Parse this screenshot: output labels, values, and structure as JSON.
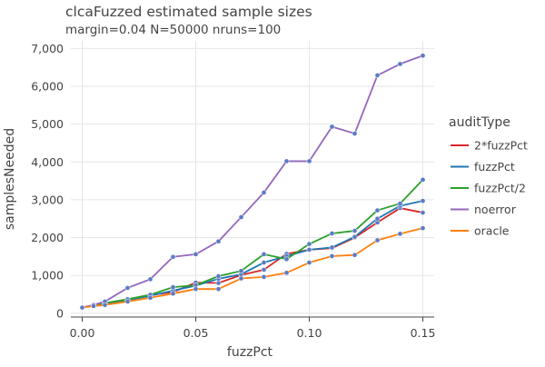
{
  "colors": {
    "2*fuzzPct": "#d62728",
    "fuzzPct": "#1f77b4",
    "fuzzPct/2": "#2ca02c",
    "noerror": "#9467bd",
    "oracle": "#ff7f0e",
    "grid": "#e6e6e6",
    "text": "#444444",
    "marker": "#5b7bc4"
  },
  "chart_data": {
    "type": "line",
    "title": "clcaFuzzed estimated sample sizes",
    "subtitle": "margin=0.04 N=50000 nruns=100",
    "xlabel": "fuzzPct",
    "ylabel": "samplesNeeded",
    "xlim": [
      -0.005,
      0.155
    ],
    "ylim": [
      -100,
      7200
    ],
    "x_ticks": [
      0,
      0.05,
      0.1,
      0.15
    ],
    "x_tick_labels": [
      "0.00",
      "0.05",
      "0.10",
      "0.15"
    ],
    "y_ticks": [
      0,
      1000,
      2000,
      3000,
      4000,
      5000,
      6000,
      7000
    ],
    "y_tick_labels": [
      "0",
      "1,000",
      "2,000",
      "3,000",
      "4,000",
      "5,000",
      "6,000",
      "7,000"
    ],
    "grid": true,
    "legend_title": "auditType",
    "legend_position": "right",
    "x": [
      0,
      0.005,
      0.01,
      0.02,
      0.03,
      0.04,
      0.05,
      0.06,
      0.07,
      0.08,
      0.09,
      0.1,
      0.11,
      0.12,
      0.13,
      0.14,
      0.15
    ],
    "series": [
      {
        "name": "2*fuzzPct",
        "values": [
          150,
          215,
          265,
          360,
          480,
          560,
          810,
          800,
          1010,
          1150,
          1570,
          1680,
          1720,
          2000,
          2400,
          2780,
          2660
        ]
      },
      {
        "name": "fuzzPct",
        "values": [
          150,
          210,
          260,
          350,
          460,
          600,
          730,
          910,
          1030,
          1340,
          1510,
          1680,
          1740,
          2020,
          2500,
          2840,
          2970
        ]
      },
      {
        "name": "fuzzPct/2",
        "values": [
          150,
          215,
          270,
          370,
          490,
          690,
          740,
          980,
          1120,
          1560,
          1430,
          1830,
          2110,
          2180,
          2720,
          2900,
          3530
        ]
      },
      {
        "name": "noerror",
        "values": [
          150,
          220,
          310,
          670,
          900,
          1490,
          1560,
          1900,
          2540,
          3190,
          4020,
          4020,
          4930,
          4750,
          6290,
          6590,
          6810
        ]
      },
      {
        "name": "oracle",
        "values": [
          150,
          190,
          220,
          310,
          410,
          520,
          640,
          640,
          920,
          960,
          1070,
          1340,
          1510,
          1540,
          1930,
          2100,
          2250
        ]
      }
    ]
  }
}
